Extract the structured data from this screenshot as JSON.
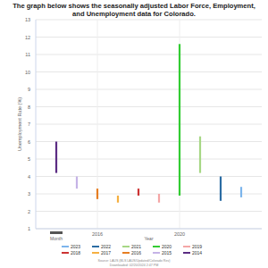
{
  "chart_data": {
    "type": "range_bar",
    "title": "The graph below shows the seasonally adjusted Labor Force, Employment, and Unemployment data for Colorado.",
    "y_label": "Unemployment Rate (%)",
    "x_label": "Year",
    "annotations": [
      "Month"
    ],
    "source": [
      "Source: LAUS (BLS LAUS/Updated/Colorado Rev)",
      "Downloaded: 02/20/2024 2:47 PM"
    ],
    "series": [
      {
        "name": "2023",
        "color": "#7cb5ec",
        "x": [
          2023
        ],
        "low": [
          2.8
        ],
        "high": [
          3.4
        ]
      },
      {
        "name": "2022",
        "color": "#2b6ca3",
        "x": [
          2022
        ],
        "low": [
          2.6
        ],
        "high": [
          4.0
        ]
      },
      {
        "name": "2021",
        "color": "#a6d785",
        "x": [
          2021
        ],
        "low": [
          4.2
        ],
        "high": [
          6.3
        ]
      },
      {
        "name": "2020",
        "color": "#33cc33",
        "x": [
          2020
        ],
        "low": [
          2.9
        ],
        "high": [
          11.6
        ]
      },
      {
        "name": "2019",
        "color": "#f4a6a6",
        "x": [
          2019
        ],
        "low": [
          2.5
        ],
        "high": [
          3.0
        ]
      },
      {
        "name": "2018",
        "color": "#cc3333",
        "x": [
          2018
        ],
        "low": [
          2.9
        ],
        "high": [
          3.3
        ]
      },
      {
        "name": "2017",
        "color": "#f5b041",
        "x": [
          2017
        ],
        "low": [
          2.5
        ],
        "high": [
          2.9
        ]
      },
      {
        "name": "2016",
        "color": "#e67e22",
        "x": [
          2016
        ],
        "low": [
          2.7
        ],
        "high": [
          3.3
        ]
      },
      {
        "name": "2015",
        "color": "#c5b3e6",
        "x": [
          2015
        ],
        "low": [
          3.3
        ],
        "high": [
          4.0
        ]
      },
      {
        "name": "2014",
        "color": "#5b2c83",
        "x": [
          2014
        ],
        "low": [
          4.2
        ],
        "high": [
          6.0
        ]
      }
    ],
    "xlim": [
      2013,
      2024
    ],
    "xticks": [
      2016,
      2020
    ],
    "ylim": [
      1,
      13
    ],
    "yticks": [
      1,
      2,
      3,
      4,
      5,
      6,
      7,
      8,
      9,
      10,
      11,
      12,
      13
    ],
    "grid": true,
    "legend": "bottom"
  }
}
